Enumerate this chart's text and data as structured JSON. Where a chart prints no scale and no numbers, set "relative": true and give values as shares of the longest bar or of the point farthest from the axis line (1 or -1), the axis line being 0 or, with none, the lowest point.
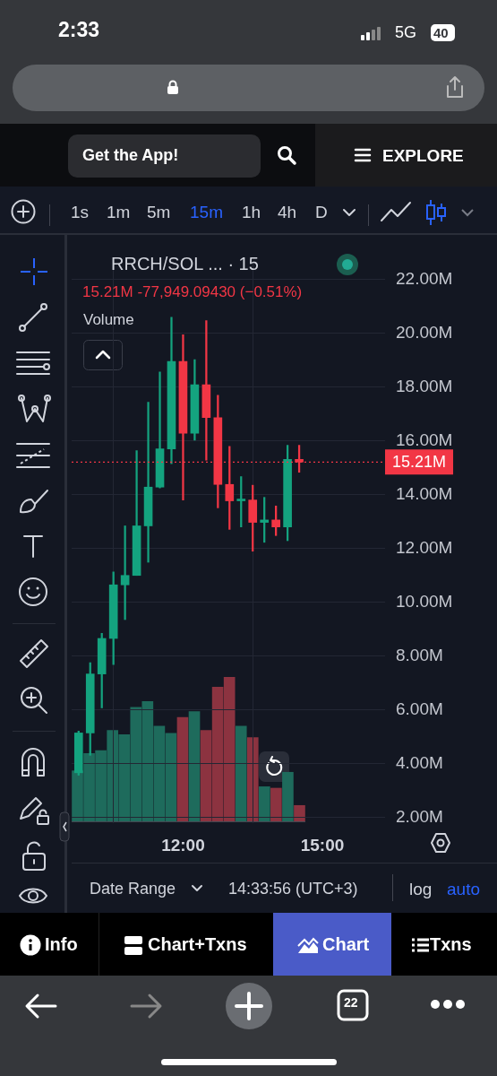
{
  "chart_data": [
    {
      "type": "candlestick",
      "title": "RRCH/SOL ... · 15",
      "subtitle": "15.21M  -77,949.09430 (−0.51%)",
      "x": [
        9.75,
        10,
        10.25,
        10.5,
        10.75,
        11,
        11.25,
        11.5,
        11.75,
        12,
        12.25,
        12.5,
        12.75,
        13,
        13.25,
        13.5,
        13.75,
        14,
        14.25,
        14.5
      ],
      "ohlc": [
        [
          3.67,
          5.22,
          3.58,
          5.15
        ],
        [
          5.15,
          7.76,
          4.32,
          7.34
        ],
        [
          7.34,
          8.85,
          6.08,
          8.66
        ],
        [
          8.66,
          11.13,
          7.69,
          10.65
        ],
        [
          10.65,
          12.84,
          9.36,
          11.0
        ],
        [
          11.0,
          15.63,
          11.0,
          12.84
        ],
        [
          12.84,
          17.43,
          11.49,
          14.28
        ],
        [
          14.28,
          18.56,
          14.25,
          15.7
        ],
        [
          15.7,
          20.59,
          15.15,
          18.95
        ],
        [
          18.95,
          19.94,
          13.8,
          16.28
        ],
        [
          16.28,
          19.01,
          16.02,
          18.08
        ],
        [
          18.08,
          20.46,
          15.28,
          16.86
        ],
        [
          16.86,
          17.69,
          13.51,
          14.38
        ],
        [
          14.38,
          15.79,
          12.71,
          13.77
        ],
        [
          13.77,
          14.67,
          12.8,
          13.8
        ],
        [
          13.8,
          14.35,
          11.9,
          12.97
        ],
        [
          12.97,
          13.9,
          12.23,
          13.06
        ],
        [
          13.06,
          13.58,
          12.48,
          12.8
        ],
        [
          12.8,
          15.83,
          12.29,
          15.31
        ],
        [
          15.31,
          15.83,
          14.83,
          15.21
        ]
      ],
      "colors": [
        "#14a37f",
        "#14a37f",
        "#14a37f",
        "#14a37f",
        "#14a37f",
        "#14a37f",
        "#14a37f",
        "#14a37f",
        "#14a37f",
        "#f23645",
        "#14a37f",
        "#f23645",
        "#f23645",
        "#f23645",
        "#14a37f",
        "#f23645",
        "#14a37f",
        "#f23645",
        "#14a37f",
        "#f23645"
      ],
      "xlim": [
        9.6,
        16.35
      ],
      "xticks": [
        {
          "value": 12,
          "label": "12:00"
        },
        {
          "value": 15,
          "label": "15:00"
        }
      ],
      "ylim": [
        1.8,
        22.6
      ],
      "yticks": [
        {
          "value": 2,
          "label": "2.00M"
        },
        {
          "value": 4,
          "label": "4.00M"
        },
        {
          "value": 6,
          "label": "6.00M"
        },
        {
          "value": 8,
          "label": "8.00M"
        },
        {
          "value": 10,
          "label": "10.00M"
        },
        {
          "value": 12,
          "label": "12.00M"
        },
        {
          "value": 14,
          "label": "14.00M"
        },
        {
          "value": 16,
          "label": "16.00M"
        },
        {
          "value": 18,
          "label": "18.00M"
        },
        {
          "value": 20,
          "label": "20.00M"
        },
        {
          "value": 22,
          "label": "22.00M"
        }
      ],
      "grid": true,
      "ref_lines": [
        {
          "axis": "y",
          "value": 15.21,
          "label": "15.21M",
          "color": "#f23645",
          "line_style": "dotted"
        }
      ]
    },
    {
      "type": "bar",
      "title": "Volume",
      "relative": true,
      "categories": [
        null,
        null,
        null,
        null,
        null,
        null,
        null,
        null,
        null,
        null,
        null,
        null,
        null,
        null,
        null,
        null,
        null,
        null,
        null,
        null
      ],
      "values": [
        0.35,
        0.47,
        0.49,
        0.63,
        0.6,
        0.79,
        0.83,
        0.66,
        0.61,
        0.72,
        0.76,
        0.63,
        0.93,
        1,
        0.66,
        0.58,
        0.24,
        0.23,
        0.34,
        0.11
      ],
      "colors": [
        "#1e6b5c",
        "#1e6b5c",
        "#1e6b5c",
        "#1e6b5c",
        "#1e6b5c",
        "#1e6b5c",
        "#1e6b5c",
        "#1e6b5c",
        "#1e6b5c",
        "#8c3340",
        "#1e6b5c",
        "#8c3340",
        "#8c3340",
        "#8c3340",
        "#1e6b5c",
        "#8c3340",
        "#1e6b5c",
        "#8c3340",
        "#1e6b5c",
        "#8c3340"
      ]
    },
    {
      "type": "other",
      "annotations": [
        "2:33",
        "5G",
        "40",
        "Get the App!",
        "EXPLORE",
        "1s",
        "1m",
        "5m",
        "15m",
        "1h",
        "4h",
        "D",
        "Date Range",
        "14:33:56 (UTC+3)",
        "log",
        "auto",
        "Info",
        "Chart+Txns",
        "Chart",
        "Txns",
        "22"
      ]
    }
  ]
}
